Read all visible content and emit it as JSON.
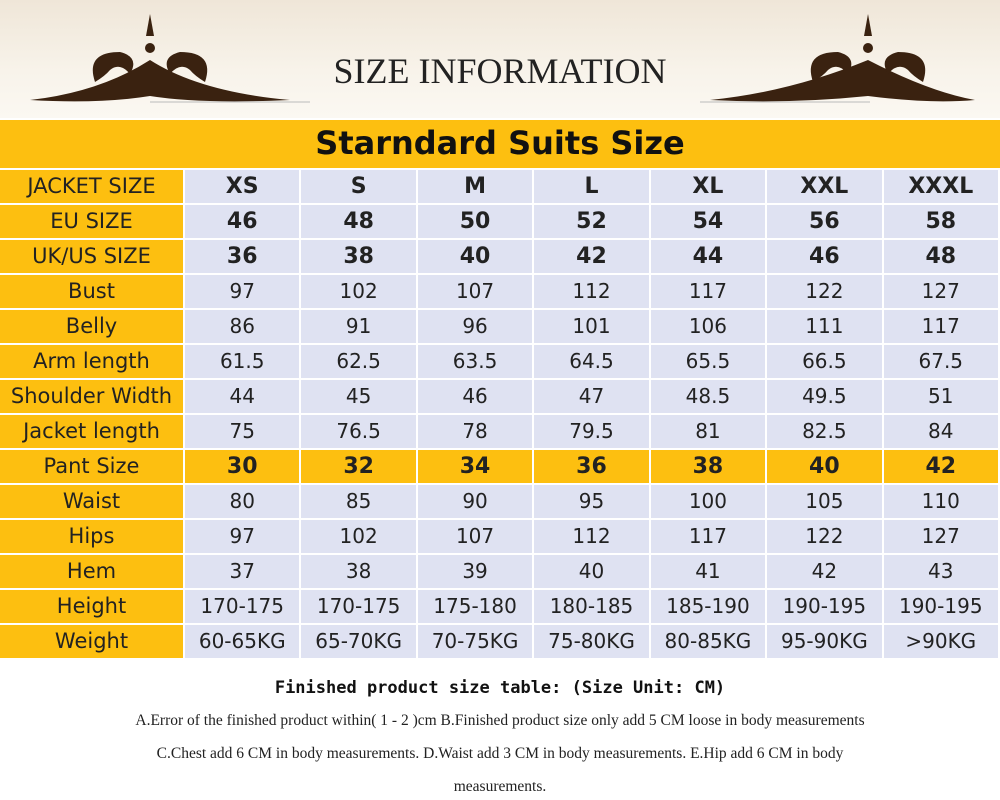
{
  "header": {
    "title": "SIZE INFORMATION"
  },
  "table": {
    "title": "Starndard Suits Size",
    "rows": [
      {
        "label": "JACKET SIZE",
        "cells": [
          "XS",
          "S",
          "M",
          "L",
          "XL",
          "XXL",
          "XXXL"
        ]
      },
      {
        "label": "EU SIZE",
        "cells": [
          "46",
          "48",
          "50",
          "52",
          "54",
          "56",
          "58"
        ]
      },
      {
        "label": "UK/US SIZE",
        "cells": [
          "36",
          "38",
          "40",
          "42",
          "44",
          "46",
          "48"
        ]
      },
      {
        "label": "Bust",
        "cells": [
          "97",
          "102",
          "107",
          "112",
          "117",
          "122",
          "127"
        ]
      },
      {
        "label": "Belly",
        "cells": [
          "86",
          "91",
          "96",
          "101",
          "106",
          "111",
          "117"
        ]
      },
      {
        "label": "Arm length",
        "cells": [
          "61.5",
          "62.5",
          "63.5",
          "64.5",
          "65.5",
          "66.5",
          "67.5"
        ]
      },
      {
        "label": "Shoulder Width",
        "cells": [
          "44",
          "45",
          "46",
          "47",
          "48.5",
          "49.5",
          "51"
        ]
      },
      {
        "label": "Jacket length",
        "cells": [
          "75",
          "76.5",
          "78",
          "79.5",
          "81",
          "82.5",
          "84"
        ]
      },
      {
        "label": "Pant Size",
        "cells": [
          "30",
          "32",
          "34",
          "36",
          "38",
          "40",
          "42"
        ]
      },
      {
        "label": "Waist",
        "cells": [
          "80",
          "85",
          "90",
          "95",
          "100",
          "105",
          "110"
        ]
      },
      {
        "label": "Hips",
        "cells": [
          "97",
          "102",
          "107",
          "112",
          "117",
          "122",
          "127"
        ]
      },
      {
        "label": "Hem",
        "cells": [
          "37",
          "38",
          "39",
          "40",
          "41",
          "42",
          "43"
        ]
      },
      {
        "label": "Height",
        "cells": [
          "170-175",
          "170-175",
          "175-180",
          "180-185",
          "185-190",
          "190-195",
          "190-195"
        ]
      },
      {
        "label": "Weight",
        "cells": [
          "60-65KG",
          "65-70KG",
          "70-75KG",
          "75-80KG",
          "80-85KG",
          "95-90KG",
          ">90KG"
        ]
      }
    ]
  },
  "footer": {
    "caption": "Finished product size table: (Size Unit: CM)",
    "notes": [
      "A.Error of the finished product within( 1 - 2 )cm  B.Finished product size only  add 5 CM loose in body measurements",
      "C.Chest add 6 CM in body measurements.  D.Waist add 3 CM in body measurements.  E.Hip add 6 CM in body",
      "measurements."
    ]
  }
}
